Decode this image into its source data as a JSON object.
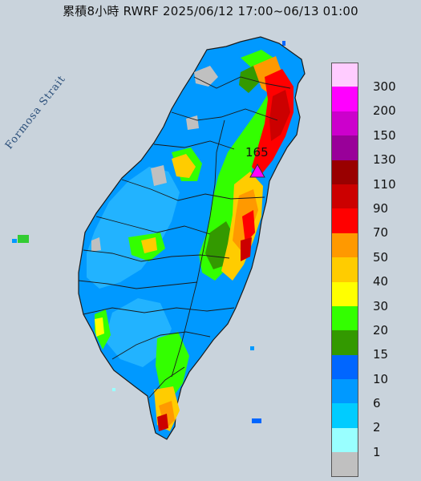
{
  "title": "累積8小時 RWRF 2025/06/12 17:00~06/13 01:00",
  "strait_label": "Formosa Strait",
  "peak": {
    "value": "165",
    "marker": "triangle-marker-icon"
  },
  "legend": [
    {
      "label": "300",
      "color": "#ffccff"
    },
    {
      "label": "200",
      "color": "#ff00ff"
    },
    {
      "label": "150",
      "color": "#cc00cc"
    },
    {
      "label": "130",
      "color": "#990099"
    },
    {
      "label": "110",
      "color": "#990000"
    },
    {
      "label": "90",
      "color": "#cc0000"
    },
    {
      "label": "70",
      "color": "#ff0000"
    },
    {
      "label": "50",
      "color": "#ff9900"
    },
    {
      "label": "40",
      "color": "#ffcc00"
    },
    {
      "label": "30",
      "color": "#ffff00"
    },
    {
      "label": "20",
      "color": "#33ff00"
    },
    {
      "label": "15",
      "color": "#339900"
    },
    {
      "label": "10",
      "color": "#0066ff"
    },
    {
      "label": "6",
      "color": "#0099ff"
    },
    {
      "label": "2",
      "color": "#00ccff"
    },
    {
      "label": "1",
      "color": "#99ffff"
    },
    {
      "label": "",
      "color": "#c0c0c0"
    }
  ]
}
